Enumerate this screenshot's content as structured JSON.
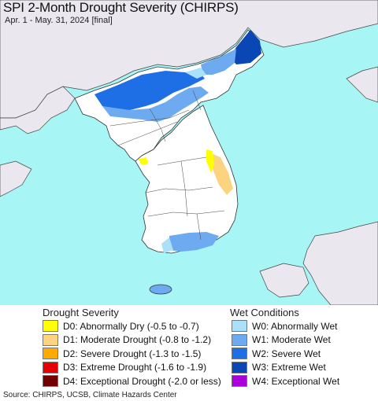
{
  "header": {
    "title": "SPI 2-Month Drought Severity (CHIRPS)",
    "subtitle": "Apr. 1 - May. 31, 2024 [final]"
  },
  "map": {
    "sea_color": "#a8f5f5",
    "land_color": "#ffffff",
    "foreign_land_color": "#ebe7ee",
    "border_color": "#333333"
  },
  "legend": {
    "drought": {
      "title": "Drought Severity",
      "items": [
        {
          "label": "D0: Abnormally Dry (-0.5 to -0.7)",
          "color": "#ffff00"
        },
        {
          "label": "D1: Moderate Drought (-0.8 to -1.2)",
          "color": "#fcd37f"
        },
        {
          "label": "D2: Severe Drought (-1.3 to -1.5)",
          "color": "#ffaa00"
        },
        {
          "label": "D3: Extreme Drought (-1.6 to -1.9)",
          "color": "#e60000"
        },
        {
          "label": "D4: Exceptional Drought (-2.0 or less)",
          "color": "#730000"
        }
      ]
    },
    "wet": {
      "title": "Wet Conditions",
      "items": [
        {
          "label": "W0: Abnormally Wet",
          "color": "#aae1f9"
        },
        {
          "label": "W1: Moderate Wet",
          "color": "#6eaaf0"
        },
        {
          "label": "W2: Severe Wet",
          "color": "#1e6ee6"
        },
        {
          "label": "W3: Extreme Wet",
          "color": "#0a46b4"
        },
        {
          "label": "W4: Exceptional Wet",
          "color": "#aa00dc"
        }
      ]
    }
  },
  "footer": {
    "source": "Source: CHIRPS, UCSB, Climate Hazards Center"
  }
}
